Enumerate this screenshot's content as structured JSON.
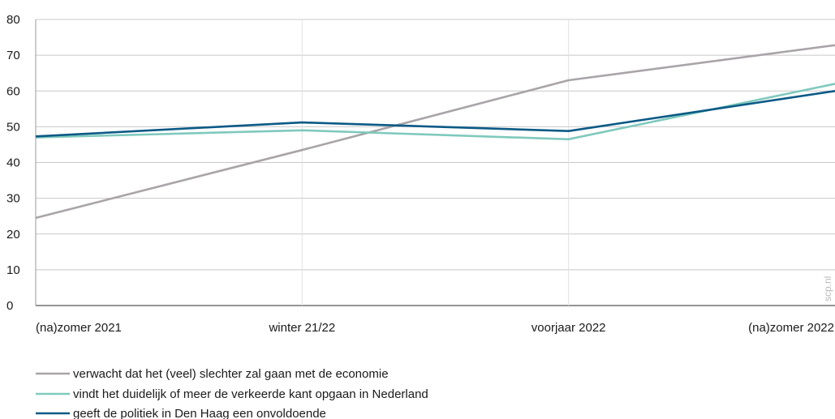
{
  "chart_data": {
    "type": "line",
    "title": "",
    "xlabel": "",
    "ylabel": "",
    "categories": [
      "(na)zomer 2021",
      "winter 21/22",
      "voorjaar 2022",
      "(na)zomer 2022"
    ],
    "ylim": [
      0,
      80
    ],
    "yticks": [
      0,
      10,
      20,
      30,
      40,
      50,
      60,
      70,
      80
    ],
    "grid": {
      "horizontal": true,
      "vertical": true
    },
    "legend_position": "bottom-left",
    "series": [
      {
        "name": "verwacht dat het (veel) slechter zal gaan met de economie",
        "color": "#a9a4a8",
        "values": [
          24.5,
          43.5,
          63,
          72.8
        ]
      },
      {
        "name": "vindt het duidelijk of meer de verkeerde kant opgaan in Nederland",
        "color": "#7fc9bd",
        "values": [
          47,
          49,
          46.5,
          62
        ]
      },
      {
        "name": "geeft de politiek in Den Haag een onvoldoende",
        "color": "#0b5a86",
        "values": [
          47.3,
          51.2,
          48.8,
          60
        ]
      }
    ]
  },
  "watermark": "scp.nl"
}
